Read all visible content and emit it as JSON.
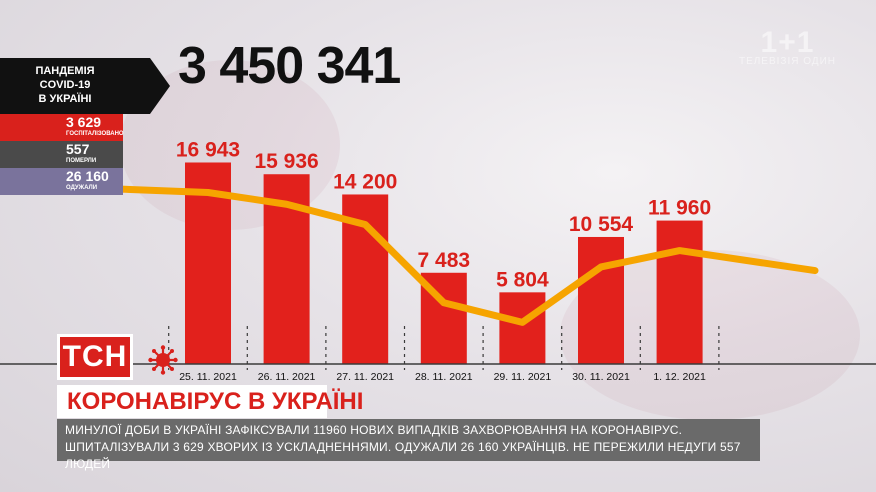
{
  "headline_total": "3 450 341",
  "logo": {
    "text": "1+1",
    "subtext": "ТЕЛЕВІЗІЯ ОДИН"
  },
  "panel": {
    "title_lines": [
      "ПАНДЕМІЯ",
      "COVID-19",
      "В УКРАЇНІ"
    ],
    "stats": [
      {
        "value": "3 629",
        "label": "ГОСПІТАЛІЗОВАНО"
      },
      {
        "value": "557",
        "label": "ПОМЕРЛИ"
      },
      {
        "value": "26 160",
        "label": "ОДУЖАЛИ"
      }
    ]
  },
  "channel": "ТСН",
  "title": "КОРОНАВІРУС В УКРАЇНІ",
  "ticker": "МИНУЛОЇ ДОБИ В УКРАЇНІ ЗАФІКСУВАЛИ 11960 НОВИХ ВИПАДКІВ ЗАХВОРЮВАННЯ НА КОРОНАВІРУС. ШПИТАЛІЗУВАЛИ 3 629 ХВОРИХ ІЗ УСКЛАДНЕННЯМИ. ОДУЖАЛИ 26 160 УКРАЇНЦІВ. НЕ ПЕРЕЖИЛИ НЕДУГИ 557 ЛЮДЕЙ",
  "colors": {
    "bar": "#e2211c",
    "trend": "#f6a400",
    "value_label": "#d9211c",
    "axis": "#3a3a3a"
  },
  "chart_data": {
    "type": "bar",
    "categories": [
      "25. 11. 2021",
      "26. 11. 2021",
      "27. 11. 2021",
      "28. 11. 2021",
      "29. 11. 2021",
      "30. 11. 2021",
      "1. 12. 2021"
    ],
    "values": [
      16943,
      15936,
      14200,
      7483,
      5804,
      10554,
      11960
    ],
    "value_labels": [
      "16 943",
      "15 936",
      "14 200",
      "7 483",
      "5 804",
      "10 554",
      "11 960"
    ],
    "overlay": "trend-line",
    "ylim": [
      0,
      17500
    ],
    "title": "",
    "xlabel": "",
    "ylabel": ""
  }
}
